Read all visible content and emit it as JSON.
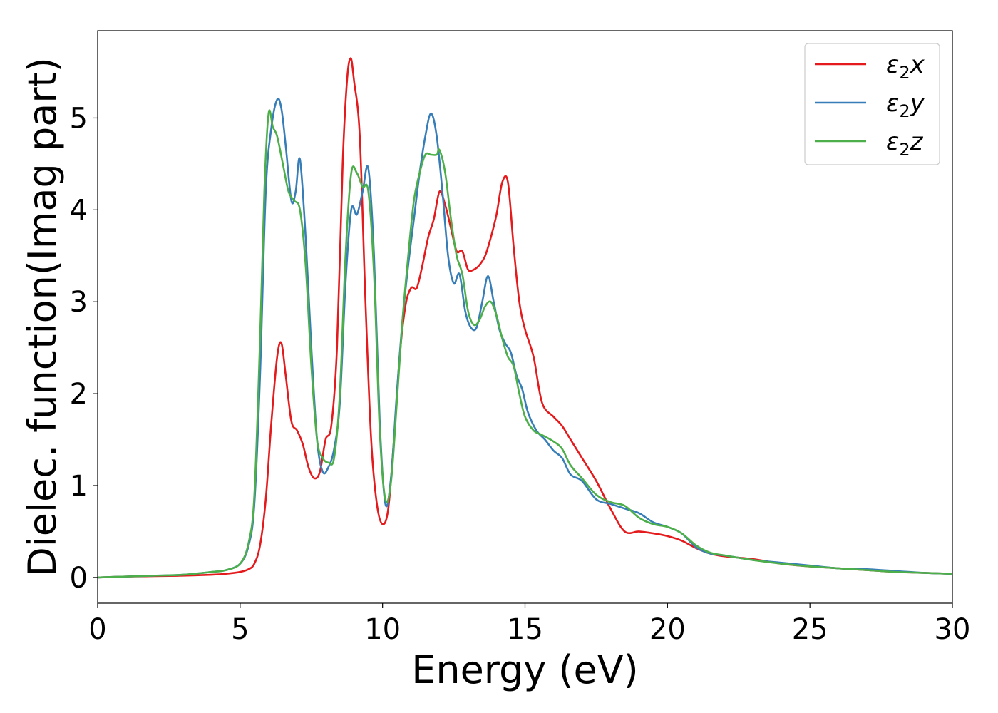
{
  "chart_data": {
    "type": "line",
    "title": "",
    "xlabel": "Energy (eV)",
    "ylabel": "Dielec. function(Imag part)",
    "xlim": [
      0,
      30
    ],
    "ylim": [
      -0.28,
      5.95
    ],
    "xticks": [
      0,
      5,
      10,
      15,
      20,
      25,
      30
    ],
    "yticks": [
      0,
      1,
      2,
      3,
      4,
      5
    ],
    "grid": false,
    "legend_position": "top-right",
    "series": [
      {
        "name": "ε₂x",
        "legend_base": "ε",
        "legend_sub": "2",
        "legend_suffix": "x",
        "color": "#e41a1c",
        "x": [
          0,
          1,
          2,
          3,
          4,
          4.5,
          5,
          5.3,
          5.5,
          5.7,
          5.9,
          6.1,
          6.3,
          6.45,
          6.6,
          6.8,
          7.0,
          7.2,
          7.4,
          7.6,
          7.8,
          8.0,
          8.2,
          8.4,
          8.6,
          8.75,
          8.88,
          9.0,
          9.2,
          9.4,
          9.6,
          9.8,
          10.0,
          10.2,
          10.4,
          10.6,
          10.8,
          11.0,
          11.2,
          11.4,
          11.6,
          11.8,
          12.0,
          12.2,
          12.4,
          12.6,
          12.8,
          13.0,
          13.2,
          13.4,
          13.6,
          13.8,
          14.0,
          14.2,
          14.4,
          14.6,
          14.8,
          15.0,
          15.3,
          15.6,
          16.0,
          16.3,
          16.6,
          17.0,
          17.5,
          18.0,
          18.5,
          19.0,
          19.5,
          20.0,
          20.5,
          21.0,
          21.5,
          22.0,
          23.0,
          24.0,
          25.0,
          26.0,
          27.0,
          28.0,
          29.0,
          30.0
        ],
        "y": [
          0.0,
          0.01,
          0.015,
          0.02,
          0.03,
          0.04,
          0.06,
          0.09,
          0.15,
          0.35,
          0.85,
          1.7,
          2.4,
          2.55,
          2.2,
          1.7,
          1.6,
          1.45,
          1.2,
          1.08,
          1.15,
          1.5,
          1.65,
          2.5,
          4.5,
          5.4,
          5.65,
          5.4,
          4.8,
          3.0,
          1.5,
          0.8,
          0.58,
          0.75,
          1.5,
          2.4,
          2.95,
          3.15,
          3.15,
          3.4,
          3.7,
          3.9,
          4.2,
          4.05,
          3.8,
          3.55,
          3.55,
          3.35,
          3.35,
          3.4,
          3.5,
          3.7,
          3.95,
          4.3,
          4.3,
          3.6,
          3.0,
          2.7,
          2.4,
          1.9,
          1.75,
          1.65,
          1.5,
          1.3,
          1.05,
          0.75,
          0.5,
          0.5,
          0.48,
          0.45,
          0.4,
          0.32,
          0.26,
          0.23,
          0.2,
          0.15,
          0.12,
          0.1,
          0.08,
          0.06,
          0.05,
          0.04
        ]
      },
      {
        "name": "ε₂y",
        "legend_base": "ε",
        "legend_sub": "2",
        "legend_suffix": "y",
        "color": "#377eb8",
        "x": [
          0,
          1,
          2,
          3,
          4,
          4.5,
          5,
          5.3,
          5.5,
          5.7,
          5.9,
          6.1,
          6.3,
          6.45,
          6.6,
          6.8,
          6.95,
          7.1,
          7.3,
          7.5,
          7.7,
          7.9,
          8.1,
          8.3,
          8.5,
          8.7,
          8.9,
          9.1,
          9.3,
          9.5,
          9.7,
          9.9,
          10.1,
          10.3,
          10.5,
          10.7,
          10.9,
          11.1,
          11.3,
          11.5,
          11.7,
          11.9,
          12.1,
          12.3,
          12.5,
          12.7,
          12.9,
          13.1,
          13.3,
          13.5,
          13.7,
          13.9,
          14.1,
          14.3,
          14.5,
          14.7,
          14.9,
          15.1,
          15.4,
          15.7,
          16.0,
          16.3,
          16.6,
          17.0,
          17.5,
          18.0,
          18.5,
          19.0,
          19.5,
          20.0,
          20.5,
          21.0,
          21.5,
          22.0,
          23.0,
          24.0,
          25.0,
          26.0,
          27.0,
          28.0,
          29.0,
          30.0
        ],
        "y": [
          0.0,
          0.01,
          0.02,
          0.03,
          0.06,
          0.08,
          0.15,
          0.35,
          0.8,
          2.2,
          4.2,
          4.9,
          5.2,
          5.1,
          4.7,
          4.1,
          4.2,
          4.55,
          3.7,
          2.5,
          1.5,
          1.15,
          1.2,
          1.4,
          1.9,
          3.2,
          4.0,
          3.95,
          4.2,
          4.45,
          3.5,
          1.7,
          0.8,
          1.1,
          2.0,
          2.8,
          3.4,
          3.9,
          4.4,
          4.8,
          5.05,
          4.8,
          4.2,
          3.5,
          3.2,
          3.3,
          2.9,
          2.72,
          2.72,
          3.0,
          3.28,
          3.0,
          2.7,
          2.55,
          2.45,
          2.2,
          2.05,
          1.8,
          1.6,
          1.5,
          1.38,
          1.3,
          1.12,
          1.05,
          0.85,
          0.8,
          0.75,
          0.7,
          0.6,
          0.55,
          0.48,
          0.33,
          0.26,
          0.24,
          0.19,
          0.16,
          0.13,
          0.1,
          0.09,
          0.07,
          0.05,
          0.04
        ]
      },
      {
        "name": "ε₂z",
        "legend_base": "ε",
        "legend_sub": "2",
        "legend_suffix": "z",
        "color": "#4daf4a",
        "x": [
          0,
          1,
          2,
          3,
          4,
          4.5,
          5,
          5.3,
          5.5,
          5.7,
          5.85,
          6.0,
          6.15,
          6.3,
          6.5,
          6.7,
          6.9,
          7.1,
          7.3,
          7.5,
          7.7,
          7.9,
          8.1,
          8.3,
          8.5,
          8.7,
          8.9,
          9.1,
          9.3,
          9.5,
          9.7,
          9.9,
          10.1,
          10.3,
          10.5,
          10.7,
          10.9,
          11.1,
          11.3,
          11.5,
          11.7,
          11.9,
          12.0,
          12.2,
          12.4,
          12.6,
          12.8,
          13.0,
          13.2,
          13.4,
          13.6,
          13.8,
          14.0,
          14.2,
          14.4,
          14.6,
          14.8,
          15.0,
          15.3,
          15.6,
          16.0,
          16.3,
          16.6,
          17.0,
          17.5,
          18.0,
          18.5,
          19.0,
          19.5,
          20.0,
          20.5,
          21.0,
          21.5,
          22.0,
          23.0,
          24.0,
          25.0,
          26.0,
          27.0,
          28.0,
          29.0,
          30.0
        ],
        "y": [
          0.0,
          0.01,
          0.02,
          0.03,
          0.06,
          0.08,
          0.15,
          0.38,
          0.9,
          2.6,
          4.2,
          5.05,
          4.9,
          4.8,
          4.5,
          4.2,
          4.1,
          4.0,
          3.4,
          2.3,
          1.5,
          1.3,
          1.25,
          1.3,
          2.0,
          3.5,
          4.4,
          4.4,
          4.25,
          4.2,
          3.3,
          1.6,
          0.85,
          1.05,
          1.9,
          2.8,
          3.5,
          4.1,
          4.4,
          4.6,
          4.6,
          4.6,
          4.65,
          4.4,
          3.9,
          3.5,
          3.3,
          2.9,
          2.75,
          2.8,
          2.95,
          3.0,
          2.85,
          2.6,
          2.4,
          2.3,
          2.0,
          1.75,
          1.6,
          1.55,
          1.48,
          1.4,
          1.22,
          1.08,
          0.9,
          0.82,
          0.78,
          0.65,
          0.58,
          0.55,
          0.48,
          0.35,
          0.27,
          0.24,
          0.19,
          0.15,
          0.12,
          0.1,
          0.08,
          0.06,
          0.05,
          0.04
        ]
      }
    ]
  }
}
